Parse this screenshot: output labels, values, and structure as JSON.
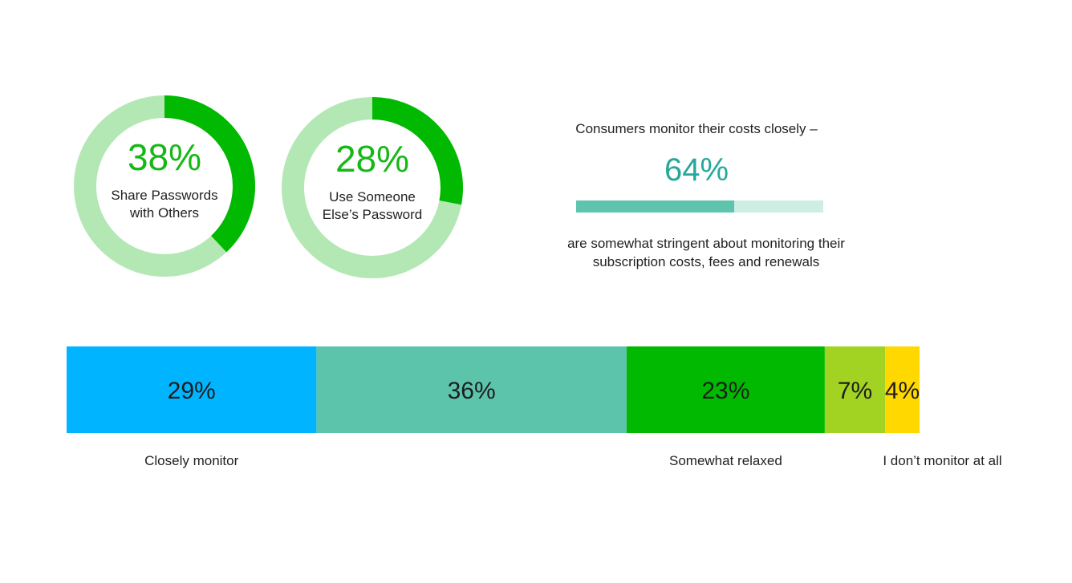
{
  "chart_data": [
    {
      "type": "pie",
      "subtype": "donut",
      "value_label": "38%",
      "label": "Share Passwords with Others",
      "label_lines": [
        "Share Passwords",
        "with Others"
      ],
      "slices": [
        {
          "name": "Share Passwords with Others",
          "value": 38,
          "color": "#00b900"
        },
        {
          "name": "",
          "value": 62,
          "color": "#b3e8b4"
        }
      ]
    },
    {
      "type": "pie",
      "subtype": "donut",
      "value_label": "28%",
      "label": "Use Someone Else’s Password",
      "label_lines": [
        "Use Someone",
        "Else’s Password"
      ],
      "slices": [
        {
          "name": "Use Someone Else’s Password",
          "value": 28,
          "color": "#00b900"
        },
        {
          "name": "",
          "value": 72,
          "color": "#b3e8b4"
        }
      ]
    },
    {
      "type": "bar",
      "subtype": "progress",
      "title": "Consumers monitor their costs closely –",
      "value_label": "64%",
      "value": 64,
      "max": 100,
      "description": "are somewhat stringent about monitoring their subscription costs, fees and renewals",
      "description_lines": [
        "are somewhat stringent about monitoring their",
        "subscription costs, fees and renewals"
      ],
      "colors": {
        "fill": "#5fc4ad",
        "track": "#cdeee4",
        "value_text": "#25a89a"
      }
    },
    {
      "type": "bar",
      "subtype": "stacked-horizontal",
      "segments": [
        {
          "value": 29,
          "label": "29%",
          "color": "#00b4ff",
          "category_label": "Closely monitor"
        },
        {
          "value": 36,
          "label": "36%",
          "color": "#5dc4ac",
          "category_label": ""
        },
        {
          "value": 23,
          "label": "23%",
          "color": "#00b900",
          "category_label": "Somewhat relaxed"
        },
        {
          "value": 7,
          "label": "7%",
          "color": "#a2d322",
          "category_label": ""
        },
        {
          "value": 4,
          "label": "4%",
          "color": "#ffd800",
          "category_label": "I don’t monitor at all"
        }
      ]
    }
  ]
}
